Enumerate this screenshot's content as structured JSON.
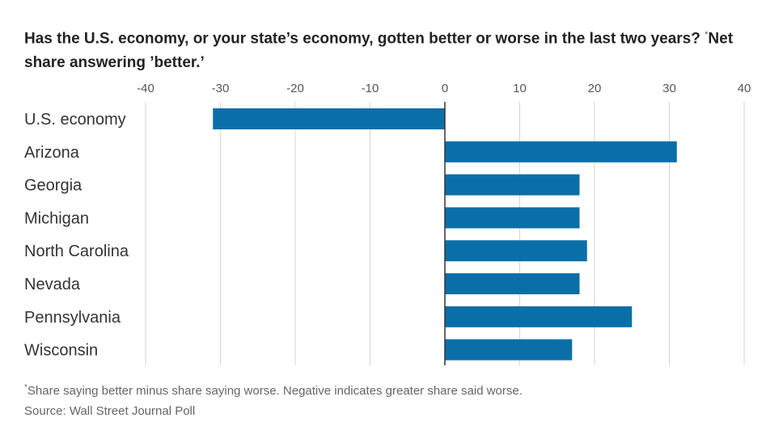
{
  "title": "Has the U.S. economy, or your state’s economy, gotten better or worse in the last two years?",
  "title_marker": "*",
  "title_suffix": "Net share answering ’better.’",
  "footnote_marker": "*",
  "footnote": "Share saying better minus share saying worse. Negative indicates greater share said worse.",
  "source": "Source: Wall Street Journal Poll",
  "colors": {
    "bar": "#0a6fa8",
    "grid": "#d4d4d4",
    "zero_line": "#333333",
    "tick": "#555555",
    "label": "#333333"
  },
  "chart_data": {
    "type": "bar",
    "orientation": "horizontal",
    "categories": [
      "U.S. economy",
      "Arizona",
      "Georgia",
      "Michigan",
      "North Carolina",
      "Nevada",
      "Pennsylvania",
      "Wisconsin"
    ],
    "values": [
      -31,
      31,
      18,
      18,
      19,
      18,
      25,
      17
    ],
    "xlim": [
      -40,
      40
    ],
    "xticks": [
      -40,
      -30,
      -20,
      -10,
      0,
      10,
      20,
      30,
      40
    ],
    "xtick_labels": [
      "-40",
      "-30",
      "-20",
      "-10",
      "0",
      "10",
      "20",
      "30",
      "40"
    ],
    "tick_position": "top",
    "grid": true,
    "legend": "none"
  }
}
